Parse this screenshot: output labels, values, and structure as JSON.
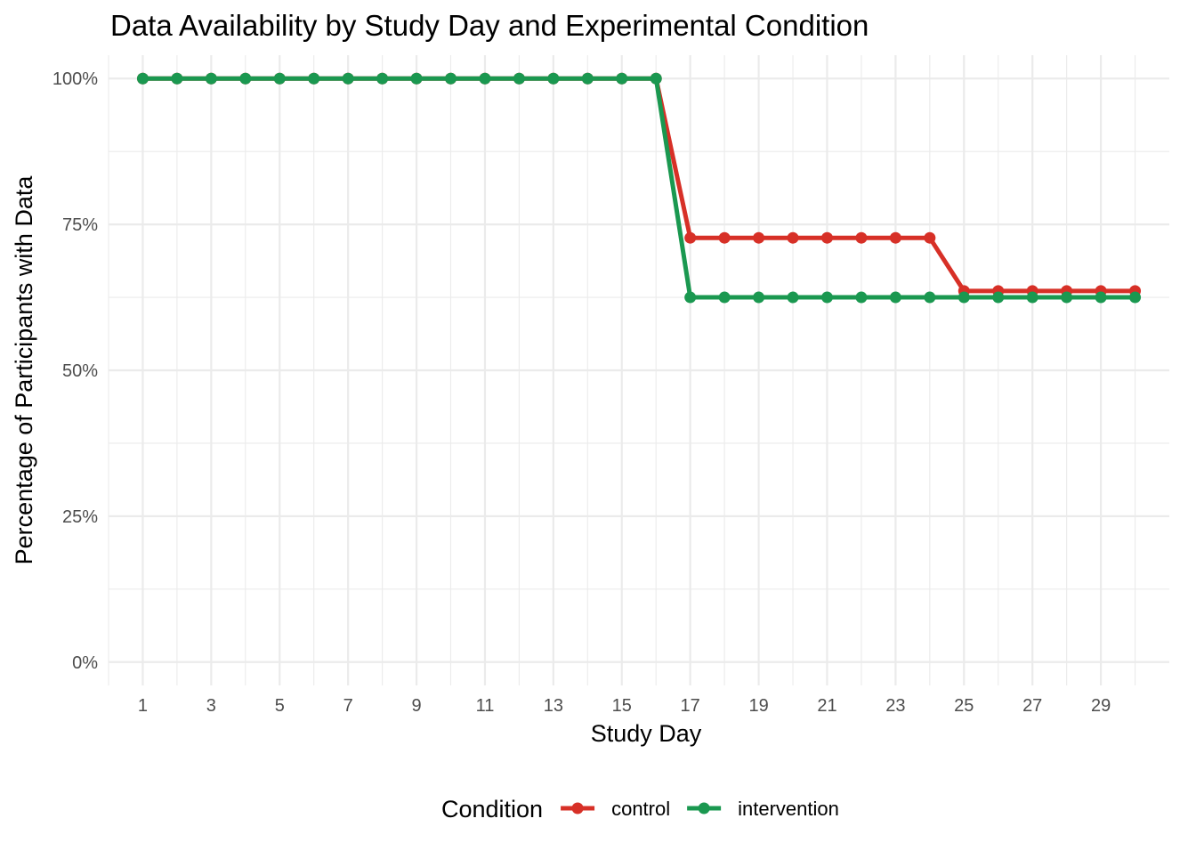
{
  "chart_data": {
    "type": "line",
    "title": "Data Availability by Study Day and Experimental Condition",
    "xlabel": "Study Day",
    "ylabel": "Percentage of Participants with Data",
    "x": [
      1,
      2,
      3,
      4,
      5,
      6,
      7,
      8,
      9,
      10,
      11,
      12,
      13,
      14,
      15,
      16,
      17,
      18,
      19,
      20,
      21,
      22,
      23,
      24,
      25,
      26,
      27,
      28,
      29,
      30
    ],
    "x_ticks": [
      1,
      3,
      5,
      7,
      9,
      11,
      13,
      15,
      17,
      19,
      21,
      23,
      25,
      27,
      29
    ],
    "x_tick_labels": [
      "1",
      "3",
      "5",
      "7",
      "9",
      "11",
      "13",
      "15",
      "17",
      "19",
      "21",
      "23",
      "25",
      "27",
      "29"
    ],
    "xlim": [
      0,
      31
    ],
    "ylim": [
      -0.04,
      1.04
    ],
    "y_ticks": [
      0,
      0.25,
      0.5,
      0.75,
      1.0
    ],
    "y_tick_labels": [
      "0%",
      "25%",
      "50%",
      "75%",
      "100%"
    ],
    "grid": true,
    "legend": {
      "title": "Condition",
      "position": "bottom"
    },
    "series": [
      {
        "name": "control",
        "color": "#d73027",
        "values": [
          1,
          1,
          1,
          1,
          1,
          1,
          1,
          1,
          1,
          1,
          1,
          1,
          1,
          1,
          1,
          1,
          0.727,
          0.727,
          0.727,
          0.727,
          0.727,
          0.727,
          0.727,
          0.727,
          0.636,
          0.636,
          0.636,
          0.636,
          0.636,
          0.636
        ]
      },
      {
        "name": "intervention",
        "color": "#1a9850",
        "values": [
          1,
          1,
          1,
          1,
          1,
          1,
          1,
          1,
          1,
          1,
          1,
          1,
          1,
          1,
          1,
          1,
          0.625,
          0.625,
          0.625,
          0.625,
          0.625,
          0.625,
          0.625,
          0.625,
          0.625,
          0.625,
          0.625,
          0.625,
          0.625,
          0.625
        ]
      }
    ]
  }
}
